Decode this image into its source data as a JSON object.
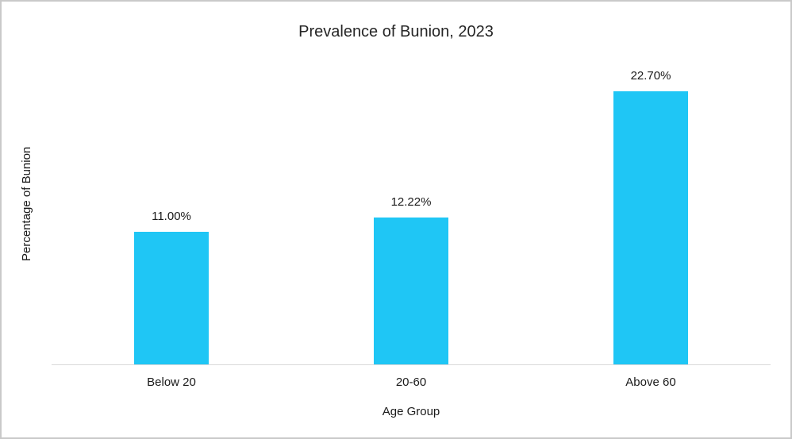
{
  "chart_data": {
    "type": "bar",
    "title": "Prevalence of Bunion, 2023",
    "categories": [
      "Below 20",
      "20-60",
      "Above 60"
    ],
    "values": [
      11.0,
      12.22,
      22.7
    ],
    "value_labels": [
      "11.00%",
      "12.22%",
      "22.70%"
    ],
    "xlabel": "Age Group",
    "ylabel": "Percentage of Bunion",
    "ylim": [
      0,
      26.8
    ],
    "grid": false,
    "legend_position": "none",
    "bar_color": "#1fc6f5",
    "axis_line_color": "#d9d9d9"
  }
}
